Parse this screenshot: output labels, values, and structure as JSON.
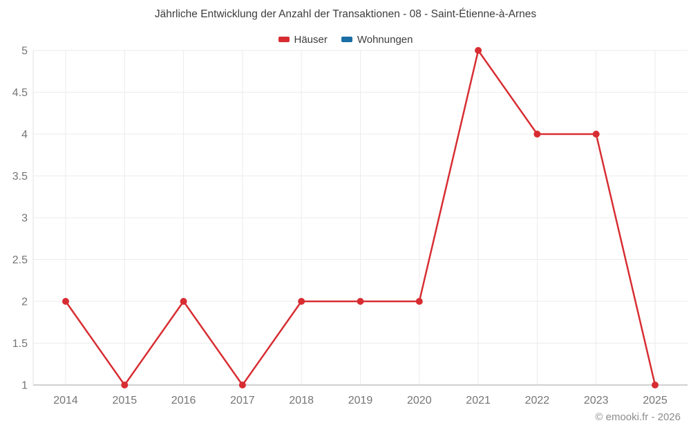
{
  "header": {
    "title": "Jährliche Entwicklung der Anzahl der Transaktionen - 08 - Saint-Étienne-à-Arnes"
  },
  "legend": [
    {
      "label": "Häuser",
      "color": "#d72d32"
    },
    {
      "label": "Wohnungen",
      "color": "#1a6ea5"
    }
  ],
  "chart_data": {
    "type": "line",
    "title": "Jährliche Entwicklung der Anzahl der Transaktionen - 08 - Saint-Étienne-à-Arnes",
    "categories": [
      "2014",
      "2015",
      "2016",
      "2017",
      "2018",
      "2019",
      "2020",
      "2021",
      "2022",
      "2023",
      "2025"
    ],
    "series": [
      {
        "name": "Häuser",
        "color": "#d72d32",
        "values": [
          2,
          1,
          2,
          1,
          2,
          2,
          2,
          5,
          4,
          4,
          1
        ]
      },
      {
        "name": "Wohnungen",
        "color": "#1a6ea5",
        "values": []
      }
    ],
    "xlabel": "",
    "ylabel": "",
    "ylim": [
      1,
      5
    ],
    "yticks": [
      1,
      1.5,
      2,
      2.5,
      3,
      3.5,
      4,
      4.5,
      5
    ],
    "grid": true,
    "legend_position": "top"
  },
  "footer": {
    "copyright": "© emooki.fr - 2026"
  },
  "colors": {
    "background": "#ffffff",
    "grid_line": "#ebebeb",
    "axis_line": "#c2c2c2",
    "plot_border": "#e3e3e3",
    "tick_label": "#757575",
    "title_text": "#3d3d3d",
    "copyright_text": "#8c8c8c"
  }
}
